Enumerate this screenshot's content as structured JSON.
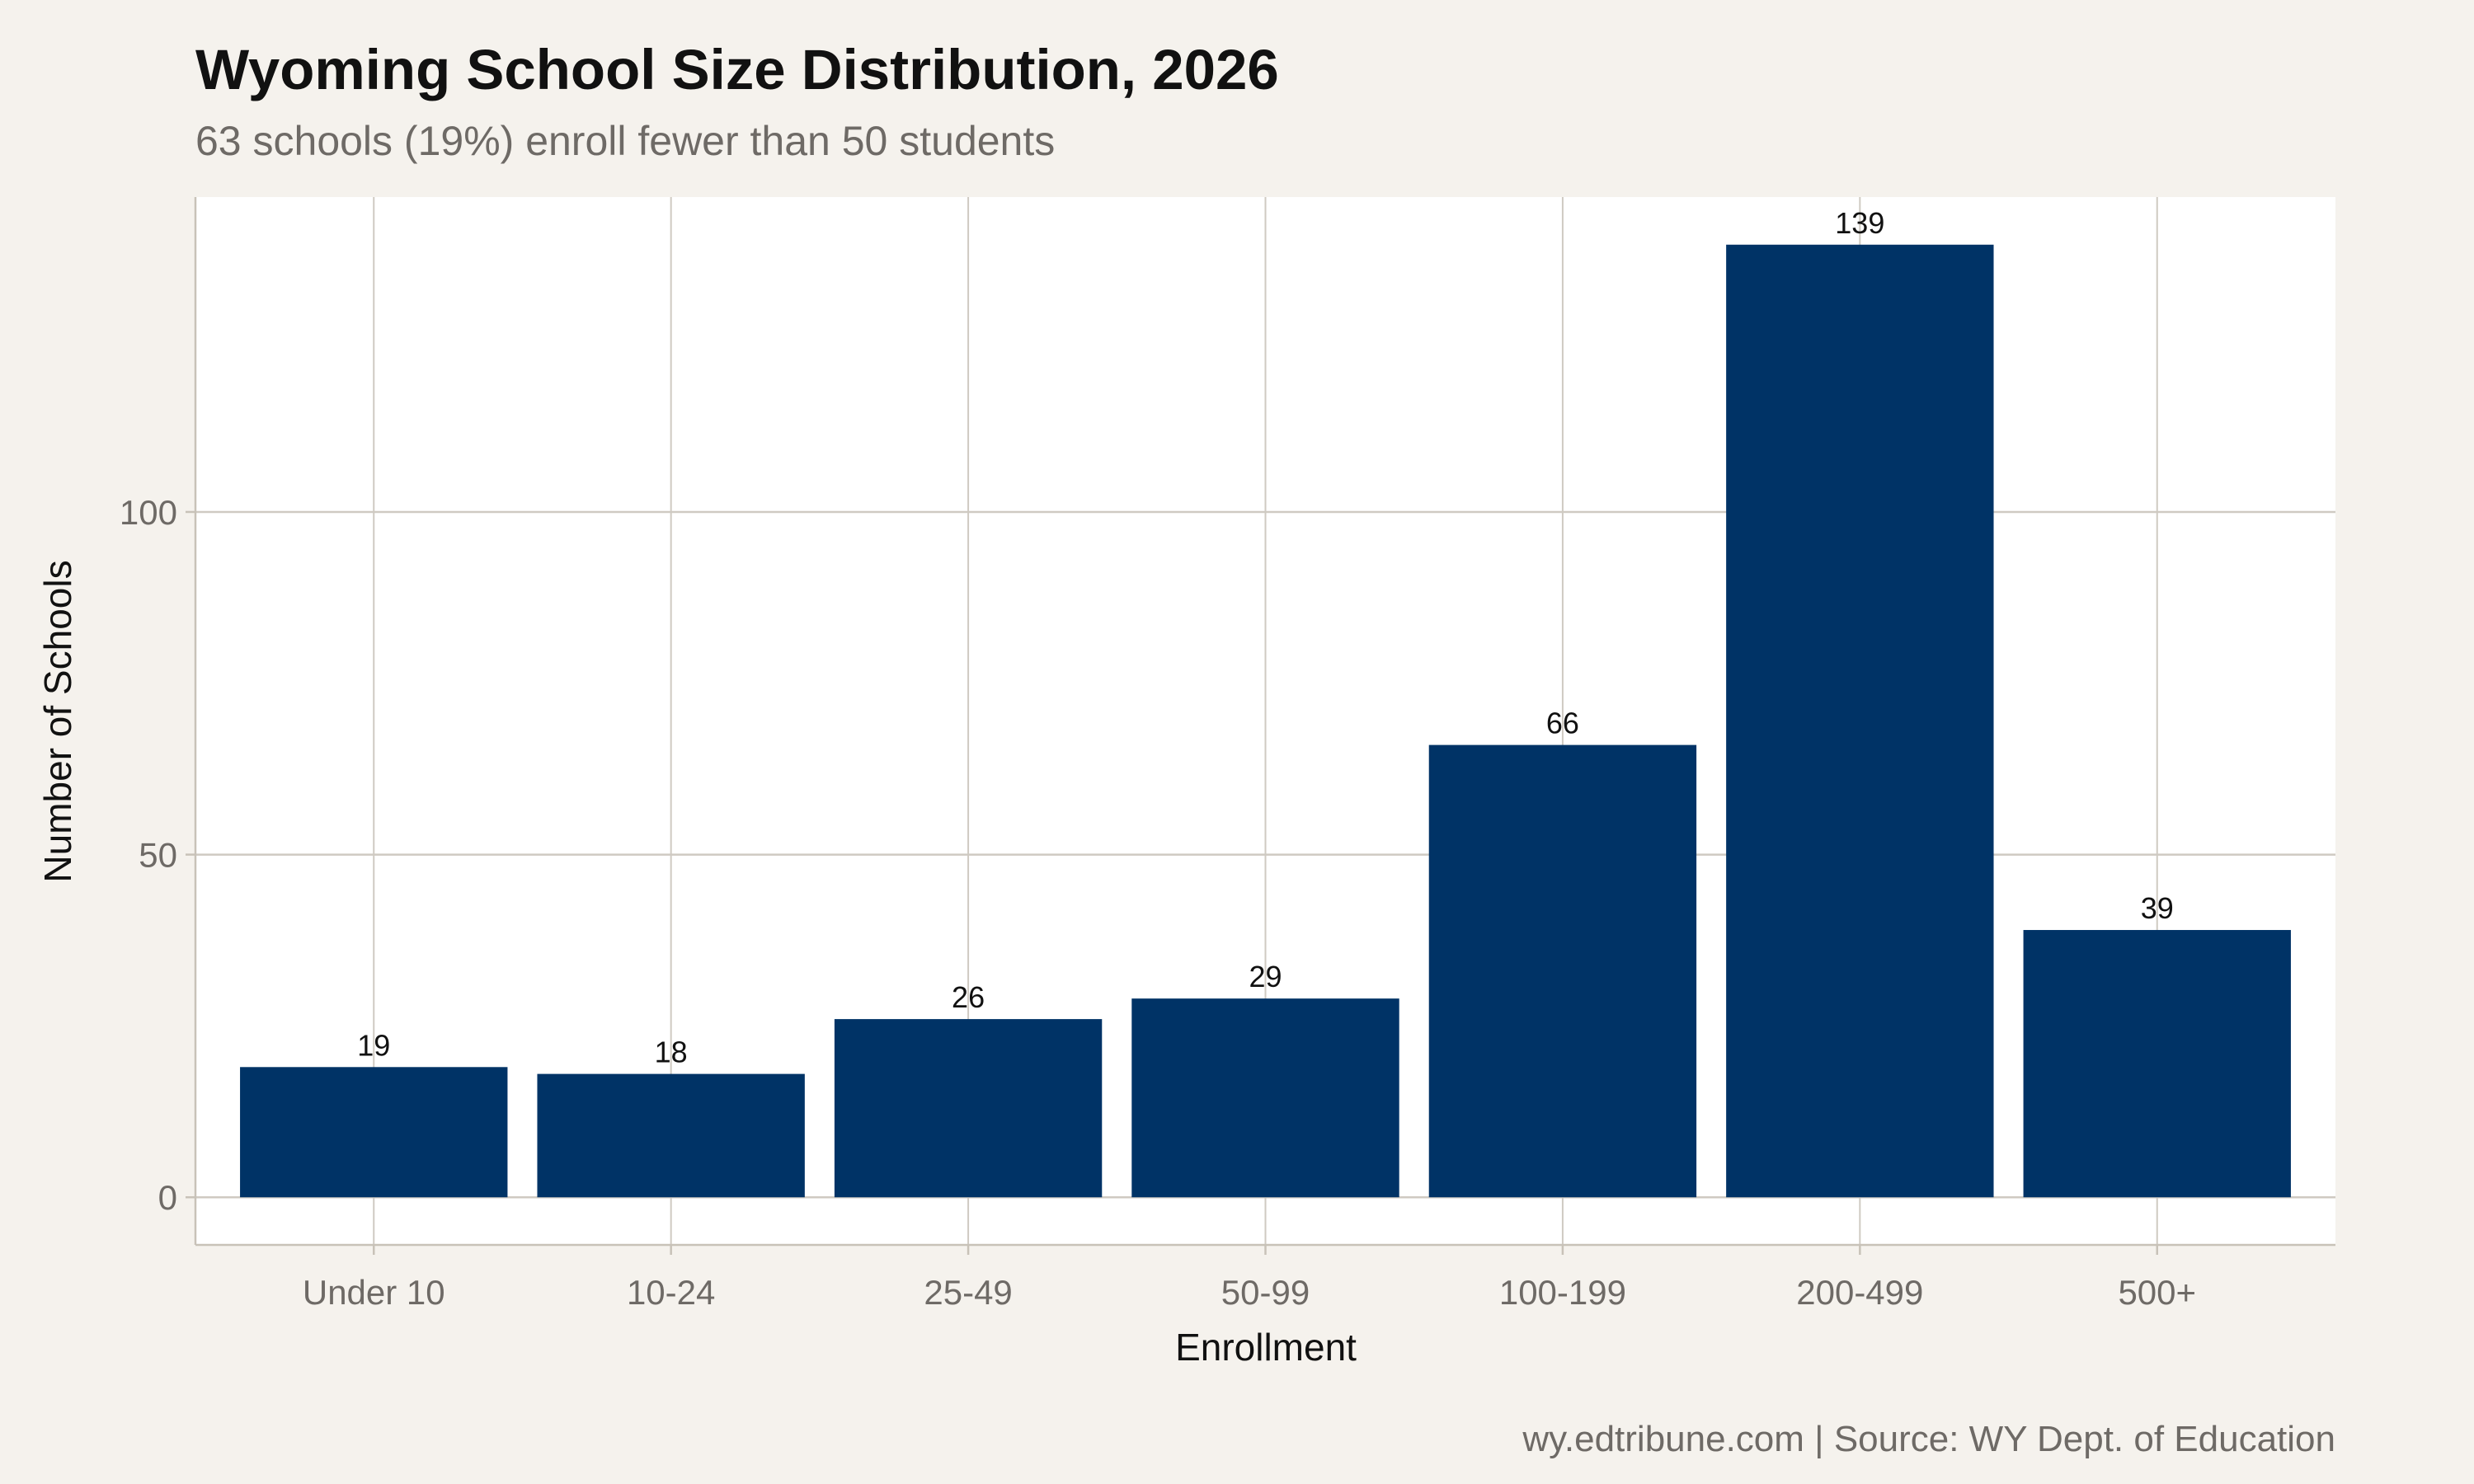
{
  "chart_data": {
    "type": "bar",
    "title": "Wyoming School Size Distribution, 2026",
    "subtitle": "63 schools (19%) enroll fewer than 50 students",
    "caption": "wy.edtribune.com | Source: WY Dept. of Education",
    "xlabel": "Enrollment",
    "ylabel": "Number of Schools",
    "categories": [
      "Under 10",
      "10-24",
      "25-49",
      "50-99",
      "100-199",
      "200-499",
      "500+"
    ],
    "values": [
      19,
      18,
      26,
      29,
      66,
      139,
      39
    ],
    "yticks": [
      0,
      50,
      100
    ],
    "ylim": [
      0,
      139
    ],
    "grid": true,
    "colors": {
      "bar": "#003366",
      "background": "#f5f2ed",
      "panel": "#ffffff",
      "grid": "#cfcac2"
    }
  }
}
